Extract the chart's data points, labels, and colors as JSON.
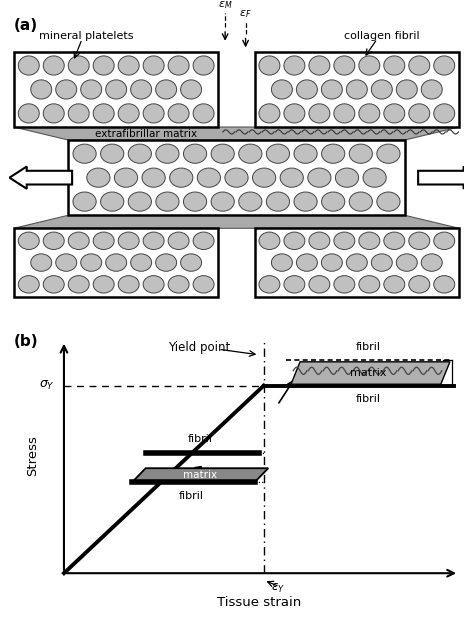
{
  "panel_a_label": "(a)",
  "panel_b_label": "(b)",
  "platelet_color": "#c0c0c0",
  "platelet_edge": "#444444",
  "box_edge": "#000000",
  "matrix_gray": "#999999",
  "matrix_dark": "#666666",
  "extrafibrillar_label": "extrafibrillar matrix",
  "mineral_label": "mineral platelets",
  "collagen_label": "collagen fibril",
  "yield_label": "Yield point",
  "stress_label": "Stress",
  "strain_label": "Tissue strain",
  "fibril_label": "fibril",
  "matrix_label": "matrix",
  "bg_color": "#ffffff"
}
